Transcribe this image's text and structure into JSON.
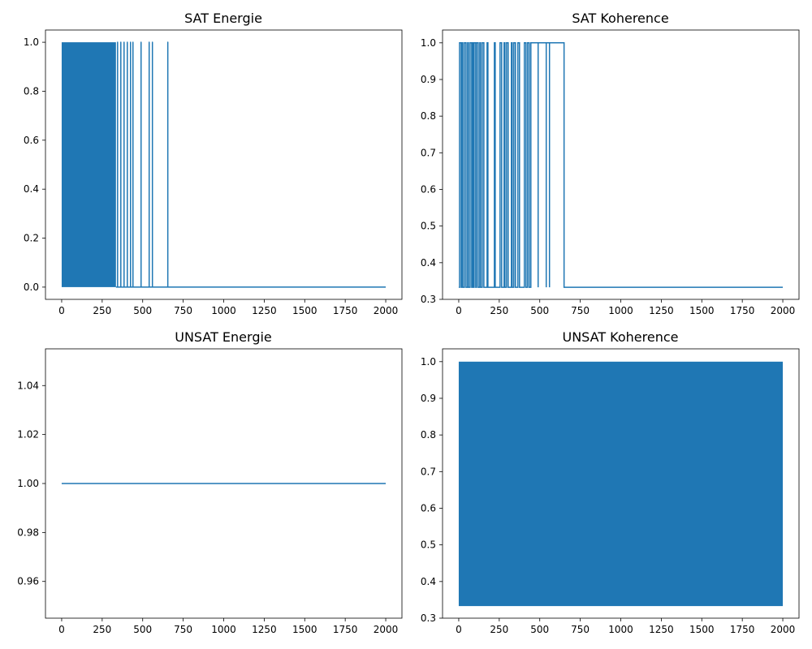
{
  "chart_data": [
    {
      "type": "line",
      "title": "SAT Energie",
      "xlabel": "",
      "ylabel": "",
      "xlim": [
        -100,
        2100
      ],
      "ylim": [
        -0.05,
        1.05
      ],
      "xticks": [
        0,
        250,
        500,
        750,
        1000,
        1250,
        1500,
        1750,
        2000
      ],
      "yticks": [
        0.0,
        0.2,
        0.4,
        0.6,
        0.8,
        1.0
      ],
      "ytick_labels": [
        "0.0",
        "0.2",
        "0.4",
        "0.6",
        "0.8",
        "1.0"
      ],
      "color": "#1f77b4",
      "grid": false,
      "series": [
        {
          "x_range": [
            0,
            2000
          ],
          "low": 0,
          "high": 1,
          "dense_oscillation_x_range": [
            0,
            335
          ],
          "spikes_at_x": [
            345,
            365,
            385,
            405,
            425,
            440,
            490,
            540,
            560,
            655
          ],
          "after_last_spike_value": 0
        }
      ]
    },
    {
      "type": "line",
      "title": "SAT Koherence",
      "xlabel": "",
      "ylabel": "",
      "xlim": [
        -100,
        2100
      ],
      "ylim": [
        0.3,
        1.035
      ],
      "xticks": [
        0,
        250,
        500,
        750,
        1000,
        1250,
        1500,
        1750,
        2000
      ],
      "yticks": [
        0.3,
        0.4,
        0.5,
        0.6,
        0.7,
        0.8,
        0.9,
        1.0
      ],
      "ytick_labels": [
        "0.3",
        "0.4",
        "0.5",
        "0.6",
        "0.7",
        "0.8",
        "0.9",
        "1.0"
      ],
      "color": "#1f77b4",
      "grid": false,
      "series": [
        {
          "x_range": [
            0,
            2000
          ],
          "low": 0.333,
          "high": 1.0,
          "high_segments": [
            [
              5,
              15
            ],
            [
              20,
              25
            ],
            [
              35,
              45
            ],
            [
              55,
              60
            ],
            [
              70,
              80
            ],
            [
              85,
              90
            ],
            [
              95,
              105
            ],
            [
              110,
              120
            ],
            [
              130,
              135
            ],
            [
              145,
              155
            ],
            [
              175,
              180
            ],
            [
              220,
              225
            ],
            [
              255,
              265
            ],
            [
              280,
              285
            ],
            [
              295,
              305
            ],
            [
              325,
              330
            ],
            [
              340,
              350
            ],
            [
              365,
              375
            ],
            [
              405,
              415
            ],
            [
              425,
              435
            ],
            [
              445,
              650
            ]
          ],
          "dips_within_last_segment": [
            490,
            540,
            560
          ],
          "after_last_segment_value": 0.333
        }
      ]
    },
    {
      "type": "line",
      "title": "UNSAT Energie",
      "xlabel": "",
      "ylabel": "",
      "xlim": [
        -100,
        2100
      ],
      "ylim": [
        0.945,
        1.055
      ],
      "xticks": [
        0,
        250,
        500,
        750,
        1000,
        1250,
        1500,
        1750,
        2000
      ],
      "yticks": [
        0.96,
        0.98,
        1.0,
        1.02,
        1.04
      ],
      "ytick_labels": [
        "0.96",
        "0.98",
        "1.00",
        "1.02",
        "1.04"
      ],
      "color": "#1f77b4",
      "grid": false,
      "series": [
        {
          "x": [
            0,
            2000
          ],
          "y": [
            1.0,
            1.0
          ]
        }
      ]
    },
    {
      "type": "line",
      "title": "UNSAT Koherence",
      "xlabel": "",
      "ylabel": "",
      "xlim": [
        -100,
        2100
      ],
      "ylim": [
        0.3,
        1.035
      ],
      "xticks": [
        0,
        250,
        500,
        750,
        1000,
        1250,
        1500,
        1750,
        2000
      ],
      "yticks": [
        0.3,
        0.4,
        0.5,
        0.6,
        0.7,
        0.8,
        0.9,
        1.0
      ],
      "ytick_labels": [
        "0.3",
        "0.4",
        "0.5",
        "0.6",
        "0.7",
        "0.8",
        "0.9",
        "1.0"
      ],
      "color": "#1f77b4",
      "grid": false,
      "series": [
        {
          "x_range": [
            0,
            2000
          ],
          "low": 0.333,
          "high": 1.0,
          "dense_oscillation_x_range": [
            0,
            2000
          ]
        }
      ]
    }
  ]
}
